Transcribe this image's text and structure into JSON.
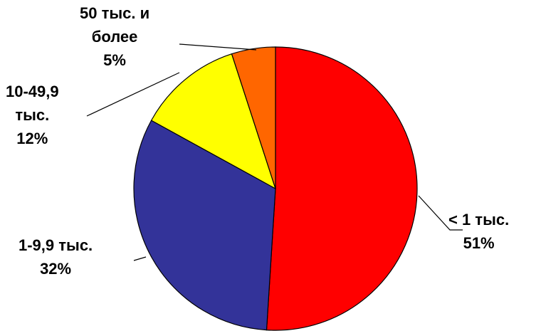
{
  "chart_data": {
    "type": "pie",
    "start_angle_deg": 0,
    "direction": "clockwise",
    "slices": [
      {
        "label": "< 1 тыс.",
        "label_lines": [
          "< 1 тыс.",
          "51%"
        ],
        "value": 51,
        "color": "#FF0000"
      },
      {
        "label": "1-9,9 тыс.",
        "label_lines": [
          "1-9,9 тыс.",
          "32%"
        ],
        "value": 32,
        "color": "#333399"
      },
      {
        "label": "10-49,9 тыс.",
        "label_lines": [
          "10-49,9",
          "тыс.",
          "12%"
        ],
        "value": 12,
        "color": "#FFFF00"
      },
      {
        "label": "50 тыс. и более",
        "label_lines": [
          "50 тыс. и",
          "более",
          "5%"
        ],
        "value": 5,
        "color": "#FF6600"
      }
    ]
  }
}
